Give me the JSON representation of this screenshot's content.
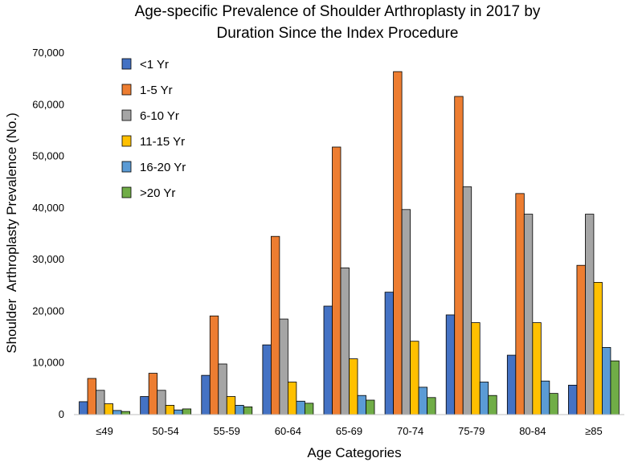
{
  "chart_data": {
    "type": "bar",
    "title": [
      "Age-specific Prevalence of Shoulder Arthroplasty in 2017 by",
      "Duration Since the Index Procedure"
    ],
    "xlabel": "Age Categories",
    "ylabel": "Shoulder  Arthroplasty Prevalence (No.)",
    "ylim": [
      0,
      70000
    ],
    "yticks": [
      0,
      10000,
      20000,
      30000,
      40000,
      50000,
      60000,
      70000
    ],
    "ytick_labels": [
      "0",
      "10,000",
      "20,000",
      "30,000",
      "40,000",
      "50,000",
      "60,000",
      "70,000"
    ],
    "legend_position": "top-left",
    "categories": [
      "≤49",
      "50-54",
      "55-59",
      "60-64",
      "65-69",
      "70-74",
      "75-79",
      "80-84",
      "≥85"
    ],
    "series": [
      {
        "name": "<1 Yr",
        "color": "#4472C4",
        "values": [
          2500,
          3500,
          7600,
          13500,
          21000,
          23700,
          19300,
          11500,
          5700
        ]
      },
      {
        "name": "1-5 Yr",
        "color": "#ED7D31",
        "values": [
          7000,
          8000,
          19100,
          34500,
          51800,
          66400,
          61600,
          42800,
          28900
        ]
      },
      {
        "name": "6-10 Yr",
        "color": "#A5A5A5",
        "values": [
          4700,
          4700,
          9800,
          18500,
          28400,
          39700,
          44100,
          38800,
          38800
        ]
      },
      {
        "name": "11-15 Yr",
        "color": "#FFC000",
        "values": [
          2100,
          1800,
          3500,
          6300,
          10800,
          14200,
          17800,
          17800,
          25600
        ]
      },
      {
        "name": "16-20 Yr",
        "color": "#5B9BD5",
        "values": [
          800,
          900,
          1800,
          2600,
          3700,
          5300,
          6300,
          6500,
          13000
        ]
      },
      {
        "name": ">20 Yr",
        "color": "#70AD47",
        "values": [
          600,
          1100,
          1500,
          2200,
          2800,
          3300,
          3700,
          4100,
          10400
        ]
      }
    ]
  }
}
